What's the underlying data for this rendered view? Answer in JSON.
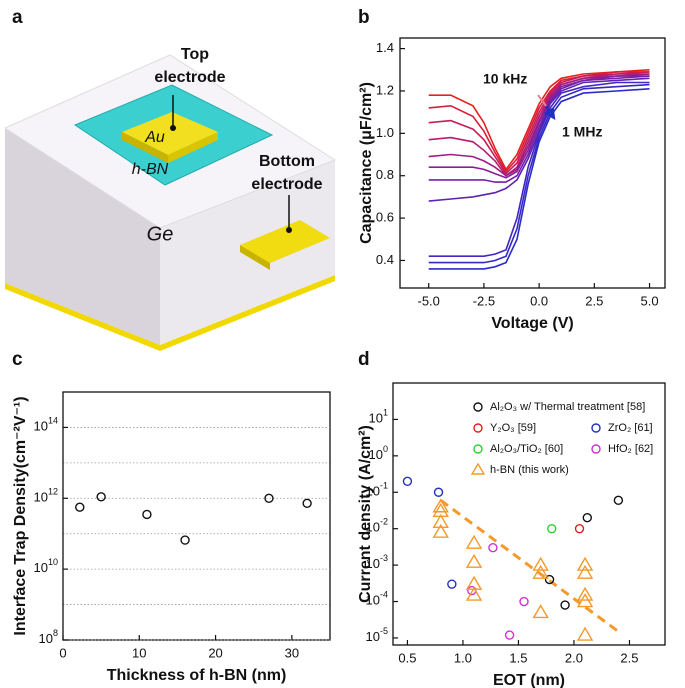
{
  "schematic": {
    "panel_label": "a",
    "top_electrode": [
      "Top",
      "electrode"
    ],
    "bottom_electrode": [
      "Bottom",
      "electrode"
    ],
    "au": "Au",
    "hbn": "h-BN",
    "ge": "Ge"
  },
  "chart_data": [
    {
      "type": "line",
      "panel_label": "b",
      "xlabel": "Voltage (V)",
      "ylabel": "Capacitance (μF/cm²)",
      "x": [
        -5,
        -4,
        -3,
        -2.5,
        -2,
        -1.5,
        -1,
        -0.5,
        0,
        0.5,
        1,
        2,
        3.5,
        5
      ],
      "series": [
        {
          "color": "#e8201c",
          "values": [
            1.18,
            1.18,
            1.13,
            1.05,
            0.93,
            0.83,
            0.9,
            1.02,
            1.14,
            1.22,
            1.26,
            1.28,
            1.29,
            1.3
          ]
        },
        {
          "color": "#d81e3a",
          "values": [
            1.12,
            1.13,
            1.08,
            1.01,
            0.91,
            0.82,
            0.88,
            1.0,
            1.12,
            1.2,
            1.25,
            1.27,
            1.29,
            1.29
          ]
        },
        {
          "color": "#c81c55",
          "values": [
            1.05,
            1.06,
            1.02,
            0.97,
            0.89,
            0.81,
            0.86,
            0.98,
            1.1,
            1.19,
            1.24,
            1.27,
            1.28,
            1.29
          ]
        },
        {
          "color": "#b51c6e",
          "values": [
            0.97,
            0.98,
            0.96,
            0.92,
            0.87,
            0.8,
            0.84,
            0.96,
            1.08,
            1.18,
            1.23,
            1.26,
            1.28,
            1.28
          ]
        },
        {
          "color": "#a01c85",
          "values": [
            0.89,
            0.9,
            0.89,
            0.87,
            0.84,
            0.8,
            0.83,
            0.94,
            1.06,
            1.17,
            1.23,
            1.26,
            1.27,
            1.28
          ]
        },
        {
          "color": "#8a1e98",
          "values": [
            0.84,
            0.84,
            0.84,
            0.83,
            0.81,
            0.79,
            0.82,
            0.92,
            1.05,
            1.16,
            1.22,
            1.25,
            1.27,
            1.27
          ]
        },
        {
          "color": "#7420a8",
          "values": [
            0.78,
            0.78,
            0.78,
            0.78,
            0.77,
            0.77,
            0.8,
            0.9,
            1.03,
            1.15,
            1.21,
            1.25,
            1.26,
            1.27
          ]
        },
        {
          "color": "#5e22b4",
          "values": [
            0.68,
            0.69,
            0.7,
            0.71,
            0.72,
            0.74,
            0.78,
            0.88,
            1.01,
            1.14,
            1.2,
            1.24,
            1.25,
            1.26
          ]
        },
        {
          "color": "#4626c0",
          "values": [
            0.42,
            0.42,
            0.42,
            0.42,
            0.43,
            0.45,
            0.6,
            0.84,
            1.0,
            1.12,
            1.19,
            1.22,
            1.24,
            1.24
          ]
        },
        {
          "color": "#3428c6",
          "values": [
            0.39,
            0.39,
            0.39,
            0.39,
            0.4,
            0.42,
            0.55,
            0.8,
            0.98,
            1.1,
            1.17,
            1.21,
            1.22,
            1.23
          ]
        },
        {
          "color": "#2a2ac8",
          "values": [
            0.36,
            0.36,
            0.36,
            0.36,
            0.37,
            0.39,
            0.5,
            0.76,
            0.96,
            1.08,
            1.15,
            1.19,
            1.2,
            1.21
          ]
        }
      ],
      "annotations": [
        {
          "text": "10 kHz",
          "color": "#e02020"
        },
        {
          "text": "1 MHz",
          "color": "#2030c0"
        }
      ],
      "xlim": [
        -6.3,
        5.7
      ],
      "xticks": [
        {
          "value": -5,
          "label": "-5.0"
        },
        -2.5,
        {
          "value": 0,
          "label": "0.0"
        },
        2.5,
        {
          "value": 5,
          "label": "5.0"
        }
      ],
      "ylim": [
        0.27,
        1.45
      ],
      "yticks": [
        0.4,
        0.6,
        0.8,
        {
          "value": 1,
          "label": "1.0"
        },
        1.2,
        1.4
      ]
    },
    {
      "type": "scatter",
      "panel_label": "c",
      "xlabel": "Thickness of h-BN (nm)",
      "ylabel": "Interface Trap Density(cm⁻²V⁻¹)",
      "yscale": "log",
      "marker": "circle",
      "color": "#111111",
      "x": [
        2.2,
        5,
        11,
        16,
        27,
        32
      ],
      "values": [
        560000000000.0,
        1100000000000.0,
        350000000000.0,
        66000000000.0,
        1000000000000.0,
        720000000000.0
      ],
      "xlim": [
        0,
        35
      ],
      "xticks": [
        0,
        10,
        20,
        30
      ],
      "ylim": [
        100000000.0,
        1000000000000000.0
      ],
      "yticks": [
        {
          "value": 100000000.0,
          "label": "10",
          "sup": "8"
        },
        {
          "value": 10000000000.0,
          "label": "10",
          "sup": "10"
        },
        {
          "value": 1000000000000.0,
          "label": "10",
          "sup": "12"
        },
        {
          "value": 100000000000000.0,
          "label": "10",
          "sup": "14"
        }
      ],
      "grid": true,
      "minor_grid": [
        1000000000.0,
        100000000000.0,
        10000000000000.0
      ]
    },
    {
      "type": "scatter",
      "panel_label": "d",
      "xlabel": "EOT (nm)",
      "ylabel": "Current density (A/cm²)",
      "yscale": "log",
      "legend": "top-right",
      "series": [
        {
          "name": "Al₂O₃ w/ Thermal treatment [58]",
          "color": "#111111",
          "marker": "circle",
          "x": [
            1.78,
            1.92,
            2.12,
            2.4
          ],
          "values": [
            0.0004,
            8e-05,
            0.02,
            0.06
          ]
        },
        {
          "name": "Y₂O₃ [59]",
          "color": "#e02020",
          "marker": "circle",
          "x": [
            2.05
          ],
          "values": [
            0.01
          ]
        },
        {
          "name": "ZrO₂ [61]",
          "color": "#2030c0",
          "marker": "circle",
          "x": [
            0.5,
            0.78,
            0.9
          ],
          "values": [
            0.2,
            0.1,
            0.0003
          ]
        },
        {
          "name": "Al₂O₃/TiO₂ [60]",
          "color": "#30d030",
          "marker": "circle",
          "x": [
            1.8
          ],
          "values": [
            0.01
          ]
        },
        {
          "name": "HfO₂ [62]",
          "color": "#d030d0",
          "marker": "circle",
          "x": [
            1.27,
            1.08,
            1.55,
            1.42
          ],
          "values": [
            0.003,
            0.0002,
            0.0001,
            1.2e-05
          ]
        },
        {
          "name": "h-BN (this work)",
          "color": "#f39a2b",
          "marker": "triangle",
          "x": [
            0.8,
            0.8,
            0.8,
            0.8,
            1.1,
            1.1,
            1.1,
            1.1,
            1.7,
            1.7,
            1.7,
            2.1,
            2.1,
            2.1,
            2.1,
            2.1
          ],
          "values": [
            0.04,
            0.03,
            0.015,
            0.008,
            0.004,
            0.0012,
            0.0003,
            0.00015,
            0.001,
            0.0006,
            5e-05,
            0.001,
            0.0006,
            0.00015,
            0.0001,
            1.2e-05
          ]
        }
      ],
      "fit": {
        "x": [
          0.8,
          2.4
        ],
        "values": [
          0.06,
          1.5e-05
        ],
        "color": "#f39a2b",
        "dashed": true
      },
      "xlim": [
        0.37,
        2.82
      ],
      "xticks": [
        0.5,
        {
          "value": 1,
          "label": "1.0"
        },
        1.5,
        {
          "value": 2,
          "label": "2.0"
        },
        2.5
      ],
      "ylim": [
        6.4e-06,
        100
      ],
      "yticks": [
        {
          "value": 1e-05,
          "label": "10",
          "sup": "-5"
        },
        {
          "value": 0.0001,
          "label": "10",
          "sup": "-4"
        },
        {
          "value": 0.001,
          "label": "10",
          "sup": "-3"
        },
        {
          "value": 0.01,
          "label": "10",
          "sup": "-2"
        },
        {
          "value": 0.1,
          "label": "10",
          "sup": "-1"
        },
        {
          "value": 1,
          "label": "10",
          "sup": "0"
        },
        {
          "value": 10,
          "label": "10",
          "sup": "1"
        }
      ]
    }
  ]
}
